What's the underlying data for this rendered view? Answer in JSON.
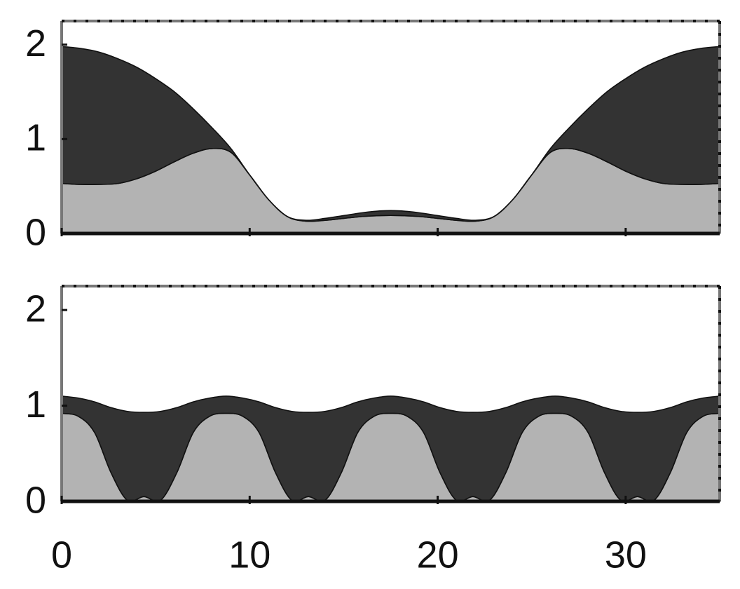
{
  "chart_data": [
    {
      "type": "stacked-area",
      "x": [
        0,
        1,
        2,
        3,
        4,
        5,
        6,
        7,
        8,
        9,
        10,
        11,
        12,
        13,
        14,
        15,
        16,
        17,
        18,
        19,
        20,
        21,
        22,
        23,
        24,
        25,
        26,
        27,
        28,
        29,
        30,
        31,
        32,
        33,
        34,
        35
      ],
      "series": [
        {
          "color": "#b3b3b3",
          "values": [
            0.53,
            0.52,
            0.52,
            0.53,
            0.58,
            0.66,
            0.76,
            0.85,
            0.9,
            0.86,
            0.62,
            0.36,
            0.18,
            0.13,
            0.14,
            0.16,
            0.18,
            0.19,
            0.19,
            0.18,
            0.16,
            0.14,
            0.13,
            0.18,
            0.36,
            0.62,
            0.86,
            0.9,
            0.85,
            0.76,
            0.66,
            0.58,
            0.53,
            0.52,
            0.52,
            0.53
          ]
        },
        {
          "color": "#333333",
          "values": [
            1.45,
            1.44,
            1.4,
            1.32,
            1.18,
            0.98,
            0.74,
            0.47,
            0.22,
            0.04,
            0,
            0,
            0,
            0.01,
            0.02,
            0.03,
            0.04,
            0.05,
            0.05,
            0.04,
            0.03,
            0.02,
            0.01,
            0,
            0,
            0,
            0.04,
            0.22,
            0.47,
            0.74,
            0.98,
            1.18,
            1.32,
            1.4,
            1.44,
            1.45
          ]
        }
      ],
      "xlim": [
        0,
        35
      ],
      "xticks": [
        0,
        10,
        20,
        30
      ],
      "xtick_labels": false,
      "ylim": [
        0,
        2.25
      ],
      "yticks": [
        0,
        1,
        2
      ]
    },
    {
      "type": "stacked-area",
      "x": [
        0,
        0.875,
        1.75,
        2.625,
        3.5,
        4.375,
        5.25,
        6.125,
        7,
        7.875,
        8.75,
        9.625,
        10.5,
        11.375,
        12.25,
        13.125,
        14,
        14.875,
        15.75,
        16.625,
        17.5,
        18.375,
        19.25,
        20.125,
        21,
        21.875,
        22.75,
        23.625,
        24.5,
        25.375,
        26.25,
        27.125,
        28,
        28.875,
        29.75,
        30.625,
        31.5,
        32.375,
        33.25,
        34.125,
        35
      ],
      "series": [
        {
          "color": "#b3b3b3",
          "values": [
            0.92,
            0.89,
            0.72,
            0.3,
            0.01,
            0.05,
            0.01,
            0.3,
            0.72,
            0.89,
            0.92,
            0.89,
            0.72,
            0.3,
            0.01,
            0.05,
            0.01,
            0.3,
            0.72,
            0.89,
            0.92,
            0.89,
            0.72,
            0.3,
            0.01,
            0.05,
            0.01,
            0.3,
            0.72,
            0.89,
            0.92,
            0.89,
            0.72,
            0.3,
            0.01,
            0.05,
            0.01,
            0.3,
            0.72,
            0.89,
            0.92
          ]
        },
        {
          "color": "#333333",
          "values": [
            0.18,
            0.19,
            0.32,
            0.68,
            0.93,
            0.88,
            0.93,
            0.68,
            0.32,
            0.19,
            0.18,
            0.19,
            0.32,
            0.68,
            0.93,
            0.88,
            0.93,
            0.68,
            0.32,
            0.19,
            0.18,
            0.19,
            0.32,
            0.68,
            0.93,
            0.88,
            0.93,
            0.68,
            0.32,
            0.19,
            0.18,
            0.19,
            0.32,
            0.68,
            0.93,
            0.88,
            0.93,
            0.68,
            0.32,
            0.19,
            0.18
          ]
        }
      ],
      "xlim": [
        0,
        35
      ],
      "xticks": [
        0,
        10,
        20,
        30
      ],
      "xtick_labels": true,
      "ylim": [
        0,
        2.25
      ],
      "yticks": [
        0,
        1,
        2
      ]
    }
  ]
}
